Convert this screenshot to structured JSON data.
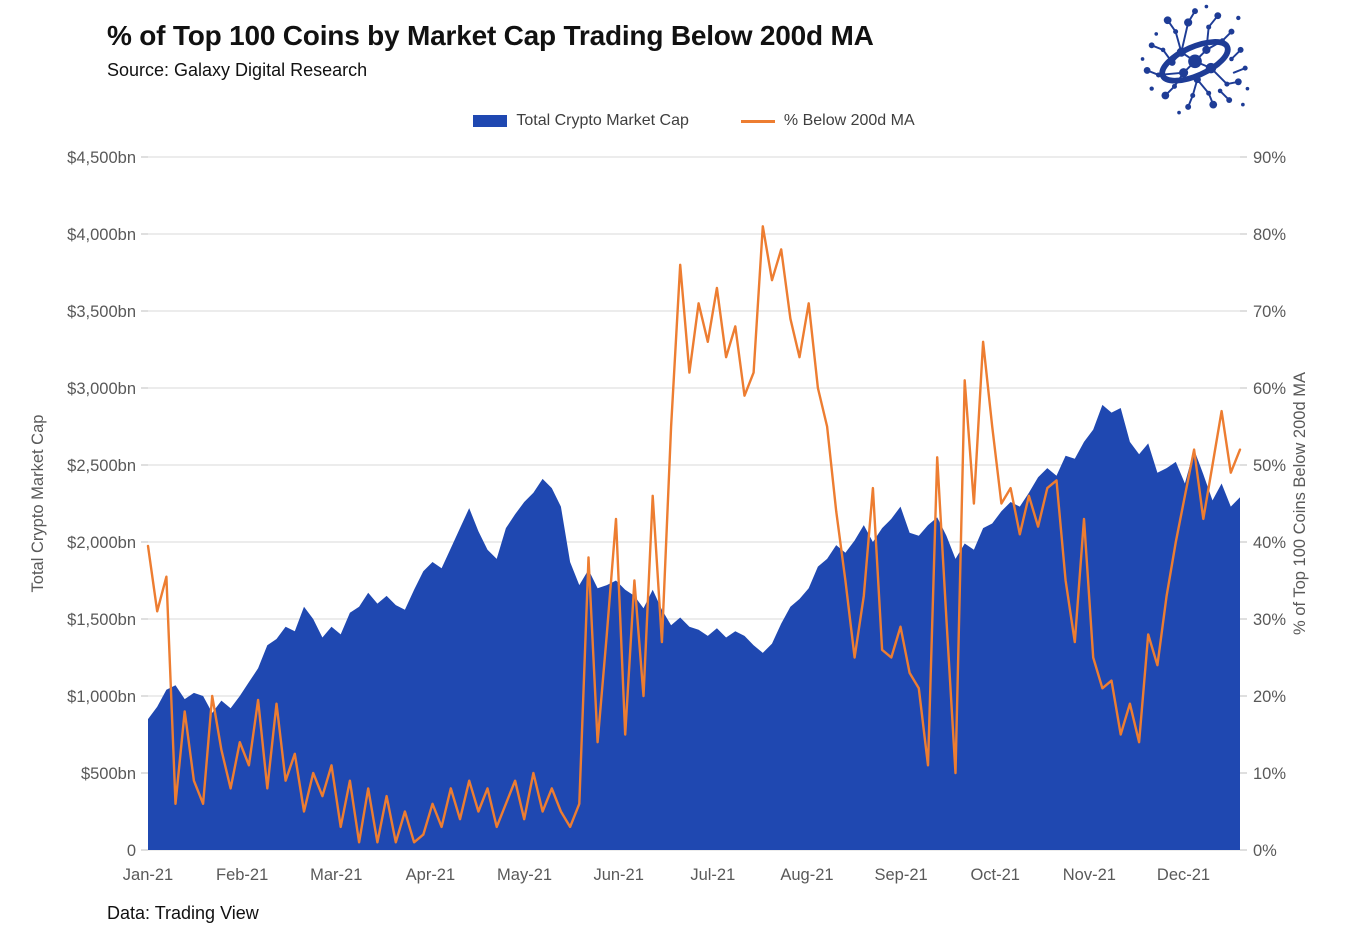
{
  "page": {
    "title": "% of Top 100 Coins by Market Cap Trading Below 200d MA",
    "source": "Source: Galaxy Digital Research",
    "footer": "Data: Trading View"
  },
  "legend": {
    "items": [
      {
        "label": "Total Crypto Market Cap",
        "swatch": "area",
        "color": "#1F48B1"
      },
      {
        "label": "% Below 200d MA",
        "swatch": "line",
        "color": "#ED7D31"
      }
    ]
  },
  "logo": {
    "name": "galaxy-digital-logo",
    "color": "#1E3C96"
  },
  "chart_data": {
    "type": "combo",
    "title": "% of Top 100 Coins by Market Cap Trading Below 200d MA",
    "grid": "horizontal",
    "legend_position": "top",
    "x_start": "Jan-2021",
    "x_point_interval_days": 3,
    "x_tick_labels": [
      "Jan-21",
      "Feb-21",
      "Mar-21",
      "Apr-21",
      "May-21",
      "Jun-21",
      "Jul-21",
      "Aug-21",
      "Sep-21",
      "Oct-21",
      "Nov-21",
      "Dec-21"
    ],
    "left_axis": {
      "label": "Total Crypto Market Cap",
      "unit": "$bn",
      "min": 0,
      "max": 4500,
      "ticks": [
        "0",
        "$500bn",
        "$1,000bn",
        "$1,500bn",
        "$2,000bn",
        "$2,500bn",
        "$3,000bn",
        "$3,500bn",
        "$4,000bn",
        "$4,500bn"
      ]
    },
    "right_axis": {
      "label": "% of Top 100 Coins Below 200d MA",
      "unit": "%",
      "min": 0,
      "max": 90,
      "ticks": [
        "0%",
        "10%",
        "20%",
        "30%",
        "40%",
        "50%",
        "60%",
        "70%",
        "80%",
        "90%"
      ]
    },
    "series": [
      {
        "name": "Total Crypto Market Cap",
        "type": "area",
        "axis": "left",
        "color": "#1F48B1",
        "values": [
          850,
          930,
          1040,
          1070,
          980,
          1020,
          1000,
          890,
          970,
          920,
          1000,
          1090,
          1180,
          1330,
          1370,
          1450,
          1420,
          1580,
          1500,
          1380,
          1450,
          1400,
          1540,
          1580,
          1670,
          1600,
          1650,
          1590,
          1560,
          1690,
          1810,
          1870,
          1830,
          1960,
          2090,
          2220,
          2070,
          1950,
          1890,
          2090,
          2180,
          2260,
          2320,
          2410,
          2350,
          2230,
          1870,
          1720,
          1820,
          1700,
          1720,
          1750,
          1690,
          1650,
          1570,
          1690,
          1560,
          1460,
          1510,
          1450,
          1430,
          1390,
          1440,
          1380,
          1420,
          1390,
          1330,
          1280,
          1340,
          1470,
          1580,
          1630,
          1700,
          1840,
          1890,
          1980,
          1930,
          2010,
          2110,
          2000,
          2090,
          2150,
          2230,
          2060,
          2040,
          2110,
          2160,
          2040,
          1890,
          1990,
          1950,
          2090,
          2120,
          2200,
          2260,
          2230,
          2320,
          2420,
          2480,
          2430,
          2560,
          2540,
          2650,
          2730,
          2890,
          2840,
          2870,
          2650,
          2570,
          2640,
          2450,
          2480,
          2520,
          2380,
          2600,
          2440,
          2270,
          2380,
          2230,
          2290
        ]
      },
      {
        "name": "% Below 200d MA",
        "type": "line",
        "axis": "right",
        "color": "#ED7D31",
        "values": [
          39.5,
          31,
          35.5,
          6,
          18,
          9,
          6,
          20,
          13,
          8,
          14,
          11,
          19.5,
          8,
          19,
          9,
          12.5,
          5,
          10,
          7,
          11,
          3,
          9,
          1,
          8,
          1,
          7,
          1,
          5,
          1,
          2,
          6,
          3,
          8,
          4,
          9,
          5,
          8,
          3,
          6,
          9,
          4,
          10,
          5,
          8,
          5,
          3,
          6,
          38,
          14,
          28,
          43,
          15,
          35,
          20,
          46,
          27,
          55,
          76,
          62,
          71,
          66,
          73,
          64,
          68,
          59,
          62,
          81,
          74,
          78,
          69,
          64,
          71,
          60,
          55,
          44,
          35,
          25,
          33,
          47,
          26,
          25,
          29,
          23,
          21,
          11,
          51,
          30,
          10,
          61,
          45,
          66,
          55,
          45,
          47,
          41,
          46,
          42,
          47,
          48,
          35,
          27,
          43,
          25,
          21,
          22,
          15,
          19,
          14,
          28,
          24,
          33,
          40,
          46,
          52,
          43,
          50,
          57,
          49,
          52
        ]
      }
    ]
  }
}
